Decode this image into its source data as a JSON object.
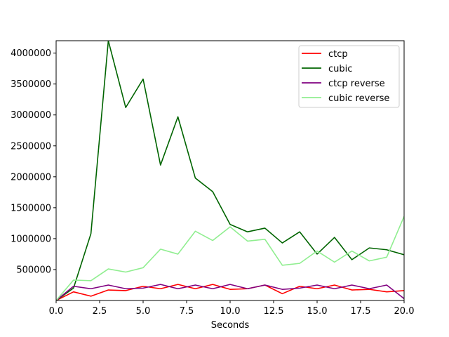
{
  "chart_data": {
    "type": "line",
    "title": "",
    "xlabel": "Seconds",
    "ylabel": "",
    "xlim": [
      0,
      20
    ],
    "ylim": [
      0,
      4200000
    ],
    "xticks": [
      0,
      2.5,
      5,
      7.5,
      10,
      12.5,
      15,
      17.5,
      20
    ],
    "xtick_labels": [
      "0.0",
      "2.5",
      "5.0",
      "7.5",
      "10.0",
      "12.5",
      "15.0",
      "17.5",
      "20.0"
    ],
    "yticks": [
      500000,
      1000000,
      1500000,
      2000000,
      2500000,
      3000000,
      3500000,
      4000000
    ],
    "ytick_labels": [
      "500000",
      "1000000",
      "1500000",
      "2000000",
      "2500000",
      "3000000",
      "3500000",
      "4000000"
    ],
    "grid": false,
    "legend_position": "top-right",
    "x": [
      0,
      1,
      2,
      3,
      4,
      5,
      6,
      7,
      8,
      9,
      10,
      11,
      12,
      13,
      14,
      15,
      16,
      17,
      18,
      19,
      20
    ],
    "series": [
      {
        "name": "ctcp",
        "color": "#ff0000",
        "values": [
          0,
          140000,
          70000,
          170000,
          160000,
          230000,
          190000,
          260000,
          190000,
          260000,
          180000,
          190000,
          250000,
          110000,
          230000,
          190000,
          250000,
          170000,
          180000,
          140000,
          160000
        ]
      },
      {
        "name": "cubic",
        "color": "#006400",
        "values": [
          0,
          200000,
          1080000,
          4200000,
          3120000,
          3580000,
          2190000,
          2970000,
          1980000,
          1760000,
          1230000,
          1110000,
          1170000,
          930000,
          1110000,
          750000,
          1020000,
          660000,
          850000,
          820000,
          740000
        ]
      },
      {
        "name": "ctcp reverse",
        "color": "#800080",
        "values": [
          0,
          230000,
          190000,
          250000,
          190000,
          200000,
          260000,
          190000,
          250000,
          190000,
          260000,
          190000,
          250000,
          180000,
          200000,
          250000,
          190000,
          250000,
          190000,
          250000,
          30000
        ]
      },
      {
        "name": "cubic reverse",
        "color": "#90ee90",
        "values": [
          0,
          330000,
          320000,
          510000,
          460000,
          530000,
          830000,
          750000,
          1120000,
          970000,
          1190000,
          960000,
          990000,
          570000,
          600000,
          800000,
          620000,
          800000,
          640000,
          700000,
          1360000
        ]
      }
    ]
  }
}
